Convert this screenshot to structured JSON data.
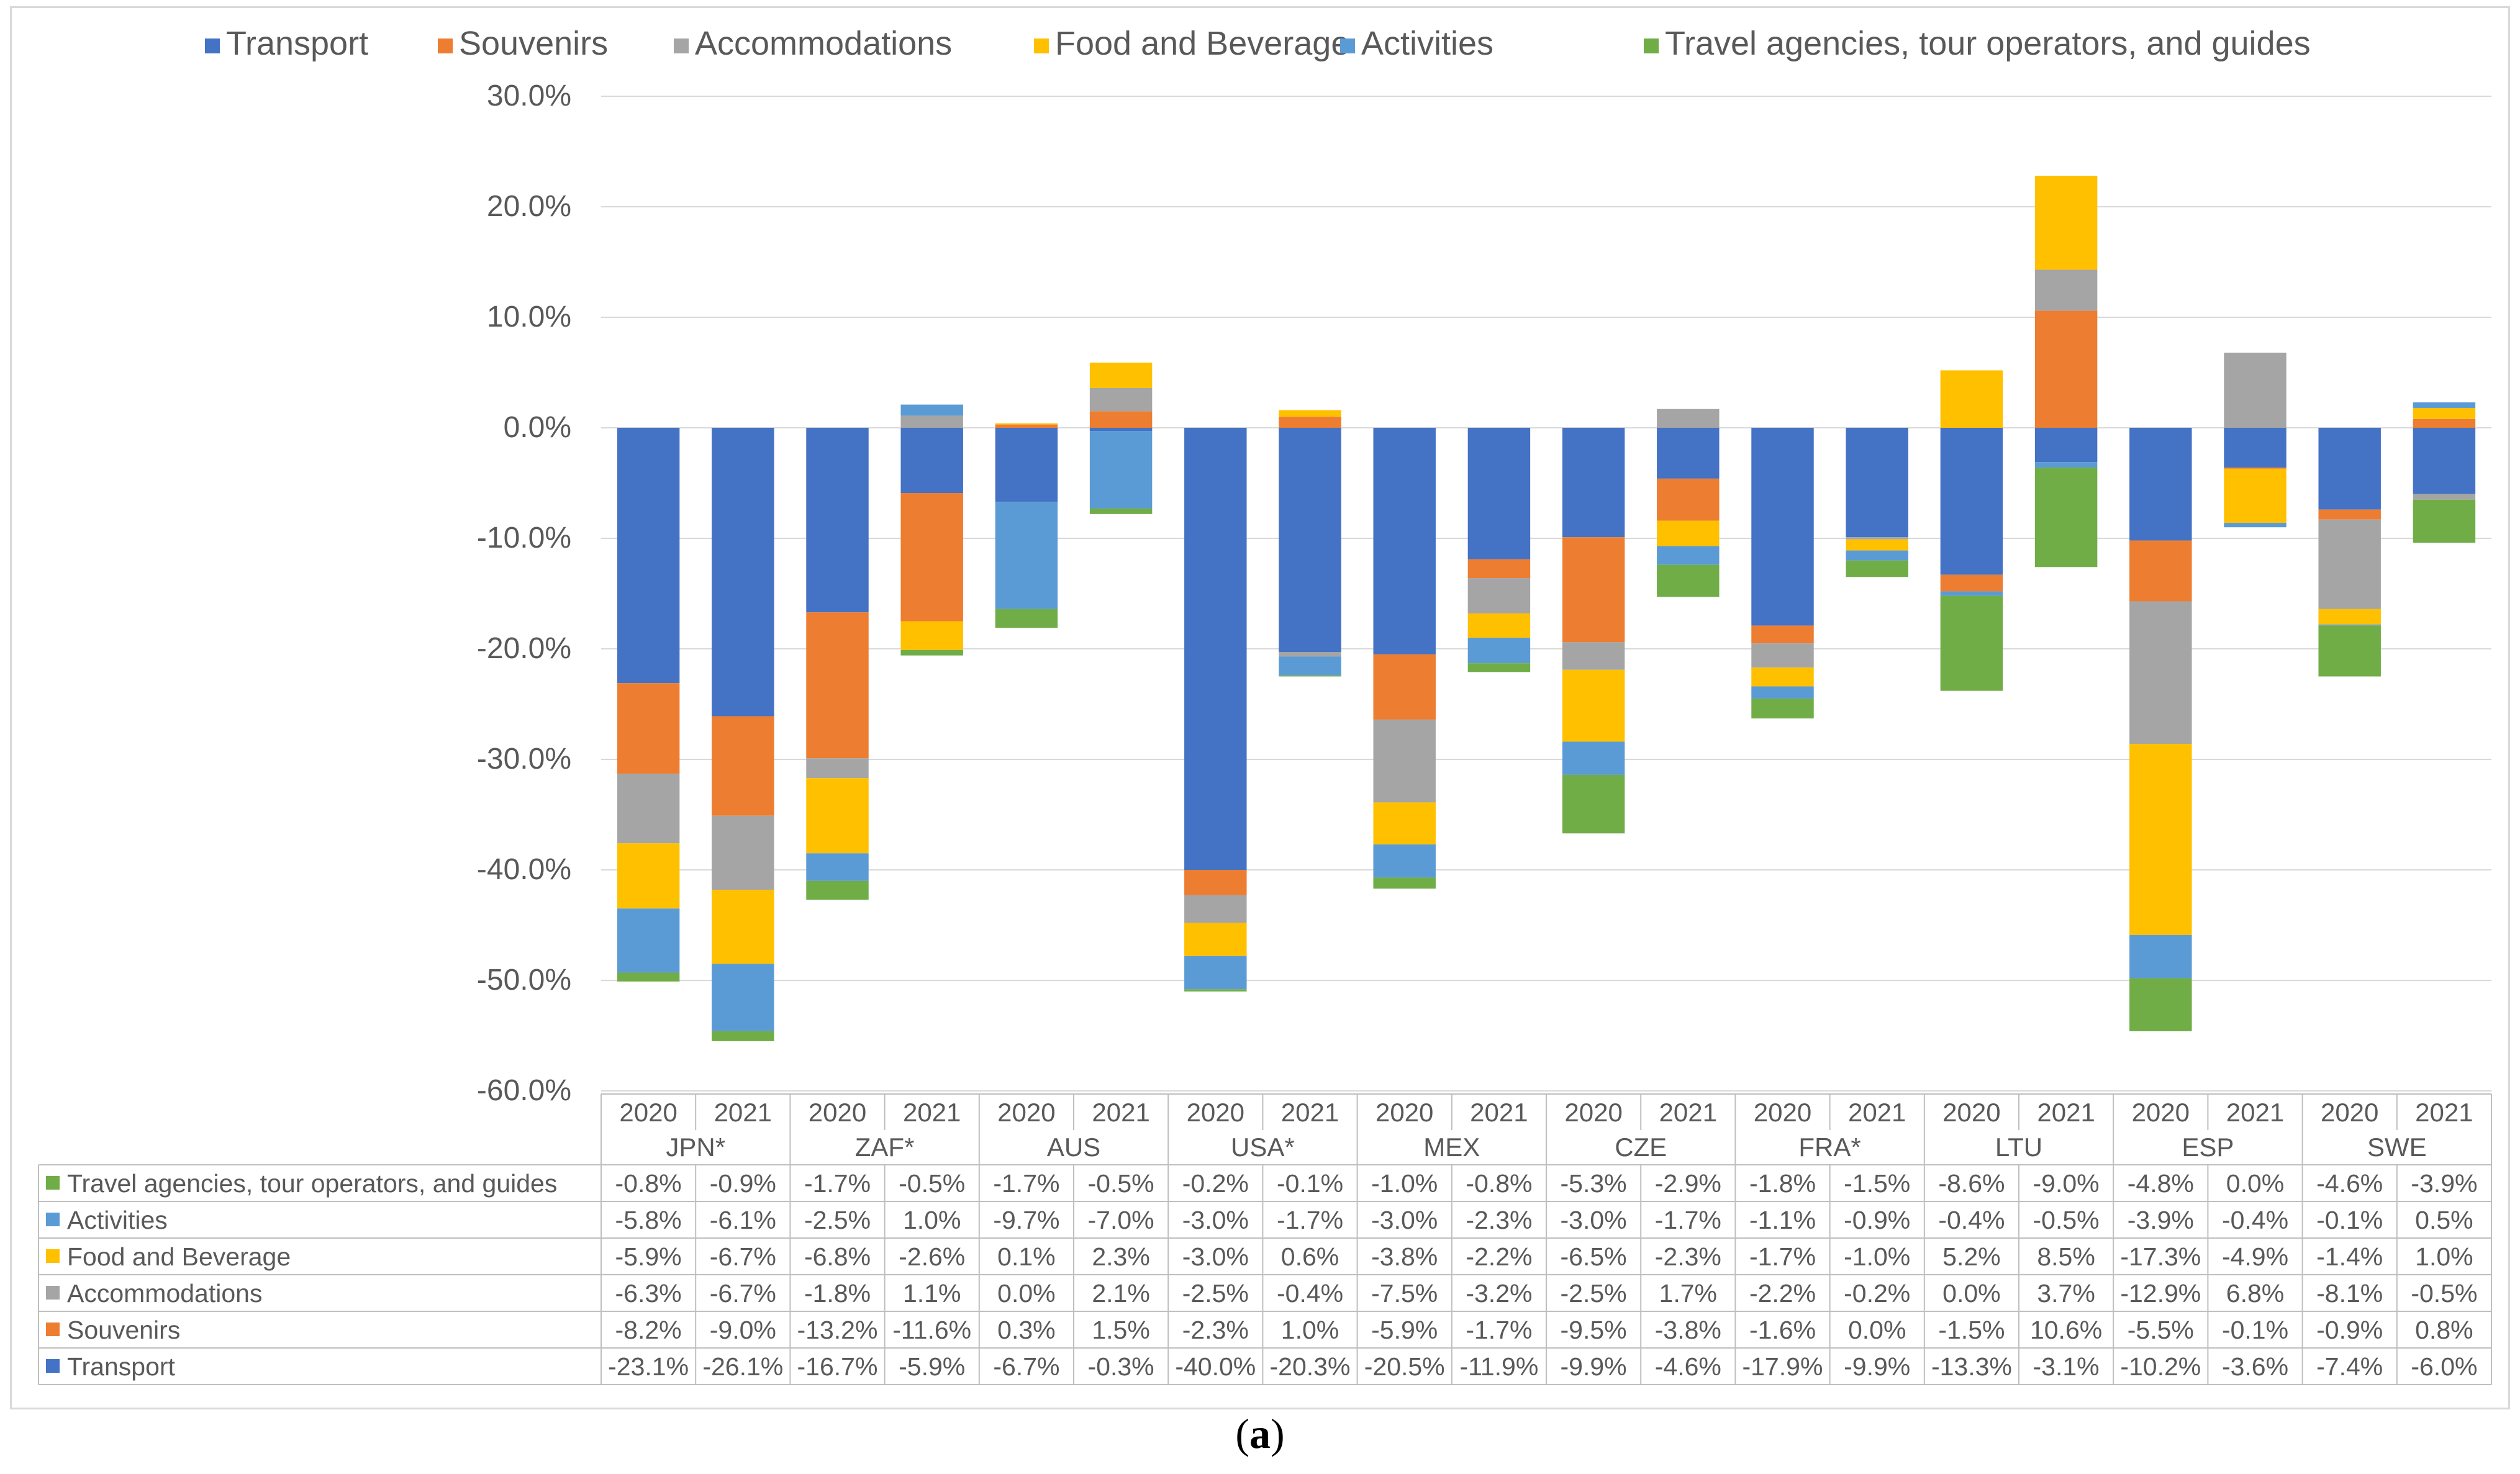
{
  "caption": {
    "open": "(",
    "letter": "a",
    "close": ")"
  },
  "chart_data": {
    "type": "bar",
    "stacked": true,
    "legend_position": "top",
    "ylim": [
      -60,
      30
    ],
    "ytick_values": [
      30,
      20,
      10,
      0,
      -10,
      -20,
      -30,
      -40,
      -50,
      -60
    ],
    "ytick_labels": [
      "30.0%",
      "20.0%",
      "10.0%",
      "0.0%",
      "-10.0%",
      "-20.0%",
      "-30.0%",
      "-40.0%",
      "-50.0%",
      "-60.0%"
    ],
    "grid": true,
    "years": [
      "2020",
      "2021"
    ],
    "countries": [
      "JPN*",
      "ZAF*",
      "AUS",
      "USA*",
      "MEX",
      "CZE",
      "FRA*",
      "LTU",
      "ESP",
      "SWE"
    ],
    "legend": [
      "Transport",
      "Souvenirs",
      "Accommodations",
      "Food and Beverage",
      "Activities",
      "Travel agencies, tour operators, and guides"
    ],
    "series": [
      {
        "name": "Transport",
        "color": "#4472c4",
        "values": [
          -23.1,
          -26.1,
          -16.7,
          -5.9,
          -6.7,
          -0.3,
          -40.0,
          -20.3,
          -20.5,
          -11.9,
          -9.9,
          -4.6,
          -17.9,
          -9.9,
          -13.3,
          -3.1,
          -10.2,
          -3.6,
          -7.4,
          -6.0
        ],
        "labels": [
          "-23.1%",
          "-26.1%",
          "-16.7%",
          "-5.9%",
          "-6.7%",
          "-0.3%",
          "-40.0%",
          "-20.3%",
          "-20.5%",
          "-11.9%",
          "-9.9%",
          "-4.6%",
          "-17.9%",
          "-9.9%",
          "-13.3%",
          "-3.1%",
          "-10.2%",
          "-3.6%",
          "-7.4%",
          "-6.0%"
        ]
      },
      {
        "name": "Souvenirs",
        "color": "#ed7d31",
        "values": [
          -8.2,
          -9.0,
          -13.2,
          -11.6,
          0.3,
          1.5,
          -2.3,
          1.0,
          -5.9,
          -1.7,
          -9.5,
          -3.8,
          -1.6,
          0.0,
          -1.5,
          10.6,
          -5.5,
          -0.1,
          -0.9,
          0.8
        ],
        "labels": [
          "-8.2%",
          "-9.0%",
          "-13.2%",
          "-11.6%",
          "0.3%",
          "1.5%",
          "-2.3%",
          "1.0%",
          "-5.9%",
          "-1.7%",
          "-9.5%",
          "-3.8%",
          "-1.6%",
          "0.0%",
          "-1.5%",
          "10.6%",
          "-5.5%",
          "-0.1%",
          "-0.9%",
          "0.8%"
        ]
      },
      {
        "name": "Accommodations",
        "color": "#a5a5a5",
        "values": [
          -6.3,
          -6.7,
          -1.8,
          1.1,
          0.0,
          2.1,
          -2.5,
          -0.4,
          -7.5,
          -3.2,
          -2.5,
          1.7,
          -2.2,
          -0.2,
          0.0,
          3.7,
          -12.9,
          6.8,
          -8.1,
          -0.5
        ],
        "labels": [
          "-6.3%",
          "-6.7%",
          "-1.8%",
          "1.1%",
          "0.0%",
          "2.1%",
          "-2.5%",
          "-0.4%",
          "-7.5%",
          "-3.2%",
          "-2.5%",
          "1.7%",
          "-2.2%",
          "-0.2%",
          "0.0%",
          "3.7%",
          "-12.9%",
          "6.8%",
          "-8.1%",
          "-0.5%"
        ]
      },
      {
        "name": "Food and Beverage",
        "color": "#ffc000",
        "values": [
          -5.9,
          -6.7,
          -6.8,
          -2.6,
          0.1,
          2.3,
          -3.0,
          0.6,
          -3.8,
          -2.2,
          -6.5,
          -2.3,
          -1.7,
          -1.0,
          5.2,
          8.5,
          -17.3,
          -4.9,
          -1.4,
          1.0
        ],
        "labels": [
          "-5.9%",
          "-6.7%",
          "-6.8%",
          "-2.6%",
          "0.1%",
          "2.3%",
          "-3.0%",
          "0.6%",
          "-3.8%",
          "-2.2%",
          "-6.5%",
          "-2.3%",
          "-1.7%",
          "-1.0%",
          "5.2%",
          "8.5%",
          "-17.3%",
          "-4.9%",
          "-1.4%",
          "1.0%"
        ]
      },
      {
        "name": "Activities",
        "color": "#5b9bd5",
        "values": [
          -5.8,
          -6.1,
          -2.5,
          1.0,
          -9.7,
          -7.0,
          -3.0,
          -1.7,
          -3.0,
          -2.3,
          -3.0,
          -1.7,
          -1.1,
          -0.9,
          -0.4,
          -0.5,
          -3.9,
          -0.4,
          -0.1,
          0.5
        ],
        "labels": [
          "-5.8%",
          "-6.1%",
          "-2.5%",
          "1.0%",
          "-9.7%",
          "-7.0%",
          "-3.0%",
          "-1.7%",
          "-3.0%",
          "-2.3%",
          "-3.0%",
          "-1.7%",
          "-1.1%",
          "-0.9%",
          "-0.4%",
          "-0.5%",
          "-3.9%",
          "-0.4%",
          "-0.1%",
          "0.5%"
        ]
      },
      {
        "name": "Travel agencies, tour operators, and guides",
        "color": "#70ad47",
        "values": [
          -0.8,
          -0.9,
          -1.7,
          -0.5,
          -1.7,
          -0.5,
          -0.2,
          -0.1,
          -1.0,
          -0.8,
          -5.3,
          -2.9,
          -1.8,
          -1.5,
          -8.6,
          -9.0,
          -4.8,
          0.0,
          -4.6,
          -3.9
        ],
        "labels": [
          "-0.8%",
          "-0.9%",
          "-1.7%",
          "-0.5%",
          "-1.7%",
          "-0.5%",
          "-0.2%",
          "-0.1%",
          "-1.0%",
          "-0.8%",
          "-5.3%",
          "-2.9%",
          "-1.8%",
          "-1.5%",
          "-8.6%",
          "-9.0%",
          "-4.8%",
          "0.0%",
          "-4.6%",
          "-3.9%"
        ]
      }
    ],
    "table_row_order": [
      "Travel agencies, tour operators, and guides",
      "Activities",
      "Food and Beverage",
      "Accommodations",
      "Souvenirs",
      "Transport"
    ]
  }
}
